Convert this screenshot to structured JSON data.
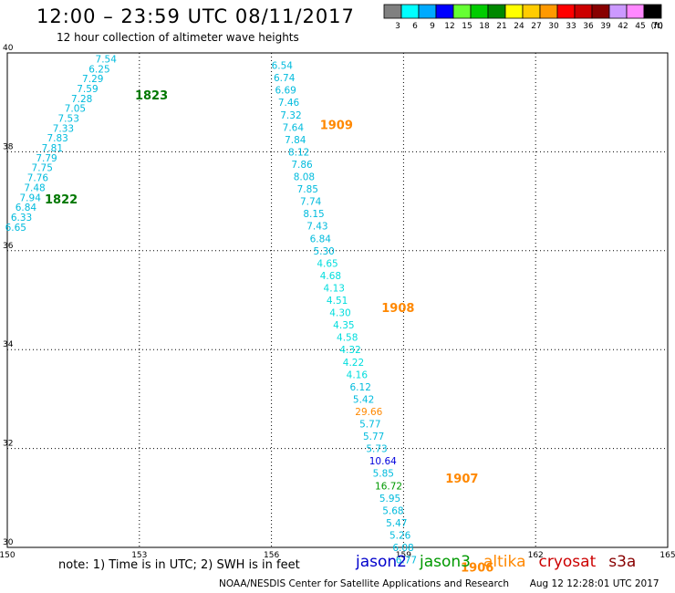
{
  "header": {
    "title": "12:00 – 23:59 UTC 08/11/2017",
    "subtitle": "12 hour collection of altimeter wave heights"
  },
  "colorbar": {
    "labels": [
      "3",
      "6",
      "9",
      "12",
      "15",
      "18",
      "21",
      "24",
      "27",
      "30",
      "33",
      "36",
      "39",
      "42",
      "45",
      "70"
    ],
    "unit": "(ft)",
    "colors": [
      "#808080",
      "#00ffff",
      "#00aaff",
      "#0000ff",
      "#66ff33",
      "#00cc00",
      "#008800",
      "#ffff00",
      "#ffcc00",
      "#ff9900",
      "#ff0000",
      "#cc0000",
      "#880000",
      "#cc99ff",
      "#ff88ff",
      "#000000"
    ]
  },
  "footer": {
    "note": "note: 1) Time is in UTC; 2) SWH is in feet",
    "missions": [
      {
        "name": "jason2",
        "color": "#0000cc"
      },
      {
        "name": "jason3",
        "color": "#009900"
      },
      {
        "name": "altika",
        "color": "#ff8800"
      },
      {
        "name": "cryosat",
        "color": "#cc0000"
      },
      {
        "name": "s3a",
        "color": "#880000"
      }
    ],
    "credit": "NOAA/NESDIS Center for Satellite Applications and Research",
    "timestamp": "Aug 12 12:28:01 UTC 2017"
  },
  "chart_data": {
    "type": "scatter",
    "title": "12:00 – 23:59 UTC 08/11/2017",
    "subtitle": "12 hour collection of altimeter wave heights",
    "xlim": [
      150,
      165
    ],
    "ylim": [
      30,
      40
    ],
    "xticks": [
      "150",
      "153",
      "156",
      "159",
      "162",
      "165"
    ],
    "yticks": [
      "30",
      "32",
      "34",
      "36",
      "38",
      "40"
    ],
    "grid": true,
    "passes": [
      {
        "label": "1823",
        "color": "#007700",
        "x": 152.9,
        "y": 39.15
      },
      {
        "label": "1822",
        "color": "#007700",
        "x": 150.85,
        "y": 37.05
      },
      {
        "label": "1909",
        "color": "#ff8800",
        "x": 157.1,
        "y": 38.55
      },
      {
        "label": "1908",
        "color": "#ff8800",
        "x": 158.5,
        "y": 34.85
      },
      {
        "label": "1907",
        "color": "#ff8800",
        "x": 159.95,
        "y": 31.4
      },
      {
        "label": "1906",
        "color": "#ff8800",
        "x": 160.3,
        "y": 29.6
      }
    ],
    "points": [
      {
        "x": 152.0,
        "y": 39.88,
        "v": "7.54",
        "c": "#00bbdd"
      },
      {
        "x": 151.85,
        "y": 39.68,
        "v": "6.25",
        "c": "#00bbdd"
      },
      {
        "x": 151.7,
        "y": 39.48,
        "v": "7.29",
        "c": "#00bbdd"
      },
      {
        "x": 151.58,
        "y": 39.28,
        "v": "7.59",
        "c": "#00bbdd"
      },
      {
        "x": 151.45,
        "y": 39.08,
        "v": "7.28",
        "c": "#00bbdd"
      },
      {
        "x": 151.3,
        "y": 38.88,
        "v": "7.05",
        "c": "#00bbdd"
      },
      {
        "x": 151.15,
        "y": 38.68,
        "v": "7.53",
        "c": "#00bbdd"
      },
      {
        "x": 151.03,
        "y": 38.48,
        "v": "7.33",
        "c": "#00bbdd"
      },
      {
        "x": 150.9,
        "y": 38.28,
        "v": "7.83",
        "c": "#00bbdd"
      },
      {
        "x": 150.78,
        "y": 38.08,
        "v": "7.81",
        "c": "#00bbdd"
      },
      {
        "x": 150.65,
        "y": 37.88,
        "v": "7.79",
        "c": "#00bbdd"
      },
      {
        "x": 150.55,
        "y": 37.68,
        "v": "7.75",
        "c": "#00bbdd"
      },
      {
        "x": 150.45,
        "y": 37.48,
        "v": "7.76",
        "c": "#00bbdd"
      },
      {
        "x": 150.38,
        "y": 37.28,
        "v": "7.48",
        "c": "#00bbdd"
      },
      {
        "x": 150.28,
        "y": 37.08,
        "v": "7.94",
        "c": "#00bbdd"
      },
      {
        "x": 150.18,
        "y": 36.88,
        "v": "6.84",
        "c": "#00bbdd"
      },
      {
        "x": 150.08,
        "y": 36.68,
        "v": "6.33",
        "c": "#00bbdd"
      },
      {
        "x": 149.95,
        "y": 36.48,
        "v": "6.65",
        "c": "#00bbdd"
      },
      {
        "x": 156.0,
        "y": 39.75,
        "v": "6.54",
        "c": "#00bbdd"
      },
      {
        "x": 156.05,
        "y": 39.5,
        "v": "6.74",
        "c": "#00bbdd"
      },
      {
        "x": 156.08,
        "y": 39.25,
        "v": "6.69",
        "c": "#00bbdd"
      },
      {
        "x": 156.15,
        "y": 39.0,
        "v": "7.46",
        "c": "#00bbdd"
      },
      {
        "x": 156.2,
        "y": 38.75,
        "v": "7.32",
        "c": "#00bbdd"
      },
      {
        "x": 156.25,
        "y": 38.5,
        "v": "7.64",
        "c": "#00bbdd"
      },
      {
        "x": 156.3,
        "y": 38.25,
        "v": "7.84",
        "c": "#00bbdd"
      },
      {
        "x": 156.38,
        "y": 38.0,
        "v": "8.12",
        "c": "#00bbdd"
      },
      {
        "x": 156.45,
        "y": 37.75,
        "v": "7.86",
        "c": "#00bbdd"
      },
      {
        "x": 156.5,
        "y": 37.5,
        "v": "8.08",
        "c": "#00bbdd"
      },
      {
        "x": 156.58,
        "y": 37.25,
        "v": "7.85",
        "c": "#00bbdd"
      },
      {
        "x": 156.65,
        "y": 37.0,
        "v": "7.74",
        "c": "#00bbdd"
      },
      {
        "x": 156.72,
        "y": 36.75,
        "v": "8.15",
        "c": "#00bbdd"
      },
      {
        "x": 156.8,
        "y": 36.5,
        "v": "7.43",
        "c": "#00bbdd"
      },
      {
        "x": 156.87,
        "y": 36.25,
        "v": "6.84",
        "c": "#00bbdd"
      },
      {
        "x": 156.95,
        "y": 36.0,
        "v": "5.30",
        "c": "#00bbdd"
      },
      {
        "x": 157.03,
        "y": 35.75,
        "v": "4.65",
        "c": "#00dddd"
      },
      {
        "x": 157.1,
        "y": 35.5,
        "v": "4.68",
        "c": "#00dddd"
      },
      {
        "x": 157.18,
        "y": 35.25,
        "v": "4.13",
        "c": "#00dddd"
      },
      {
        "x": 157.25,
        "y": 35.0,
        "v": "4.51",
        "c": "#00dddd"
      },
      {
        "x": 157.32,
        "y": 34.75,
        "v": "4.30",
        "c": "#00dddd"
      },
      {
        "x": 157.4,
        "y": 34.5,
        "v": "4.35",
        "c": "#00dddd"
      },
      {
        "x": 157.48,
        "y": 34.25,
        "v": "4.58",
        "c": "#00dddd"
      },
      {
        "x": 157.55,
        "y": 34.0,
        "v": "4.32",
        "c": "#00dddd"
      },
      {
        "x": 157.62,
        "y": 33.75,
        "v": "4.22",
        "c": "#00dddd"
      },
      {
        "x": 157.7,
        "y": 33.5,
        "v": "4.16",
        "c": "#00dddd"
      },
      {
        "x": 157.78,
        "y": 33.25,
        "v": "6.12",
        "c": "#00bbdd"
      },
      {
        "x": 157.85,
        "y": 33.0,
        "v": "5.42",
        "c": "#00bbdd"
      },
      {
        "x": 157.9,
        "y": 32.75,
        "v": "29.66",
        "c": "#ff8800"
      },
      {
        "x": 158.0,
        "y": 32.5,
        "v": "5.77",
        "c": "#00bbdd"
      },
      {
        "x": 158.08,
        "y": 32.25,
        "v": "5.77",
        "c": "#00bbdd"
      },
      {
        "x": 158.15,
        "y": 32.0,
        "v": "5.73",
        "c": "#00bbdd"
      },
      {
        "x": 158.22,
        "y": 31.75,
        "v": "10.64",
        "c": "#0000dd"
      },
      {
        "x": 158.3,
        "y": 31.5,
        "v": "5.85",
        "c": "#00bbdd"
      },
      {
        "x": 158.35,
        "y": 31.25,
        "v": "16.72",
        "c": "#009900"
      },
      {
        "x": 158.45,
        "y": 31.0,
        "v": "5.95",
        "c": "#00bbdd"
      },
      {
        "x": 158.52,
        "y": 30.75,
        "v": "5.68",
        "c": "#00bbdd"
      },
      {
        "x": 158.6,
        "y": 30.5,
        "v": "5.47",
        "c": "#00bbdd"
      },
      {
        "x": 158.68,
        "y": 30.25,
        "v": "5.26",
        "c": "#00bbdd"
      },
      {
        "x": 158.75,
        "y": 30.0,
        "v": "6.08",
        "c": "#00bbdd"
      },
      {
        "x": 158.82,
        "y": 29.75,
        "v": "6.77",
        "c": "#00bbdd"
      }
    ]
  }
}
